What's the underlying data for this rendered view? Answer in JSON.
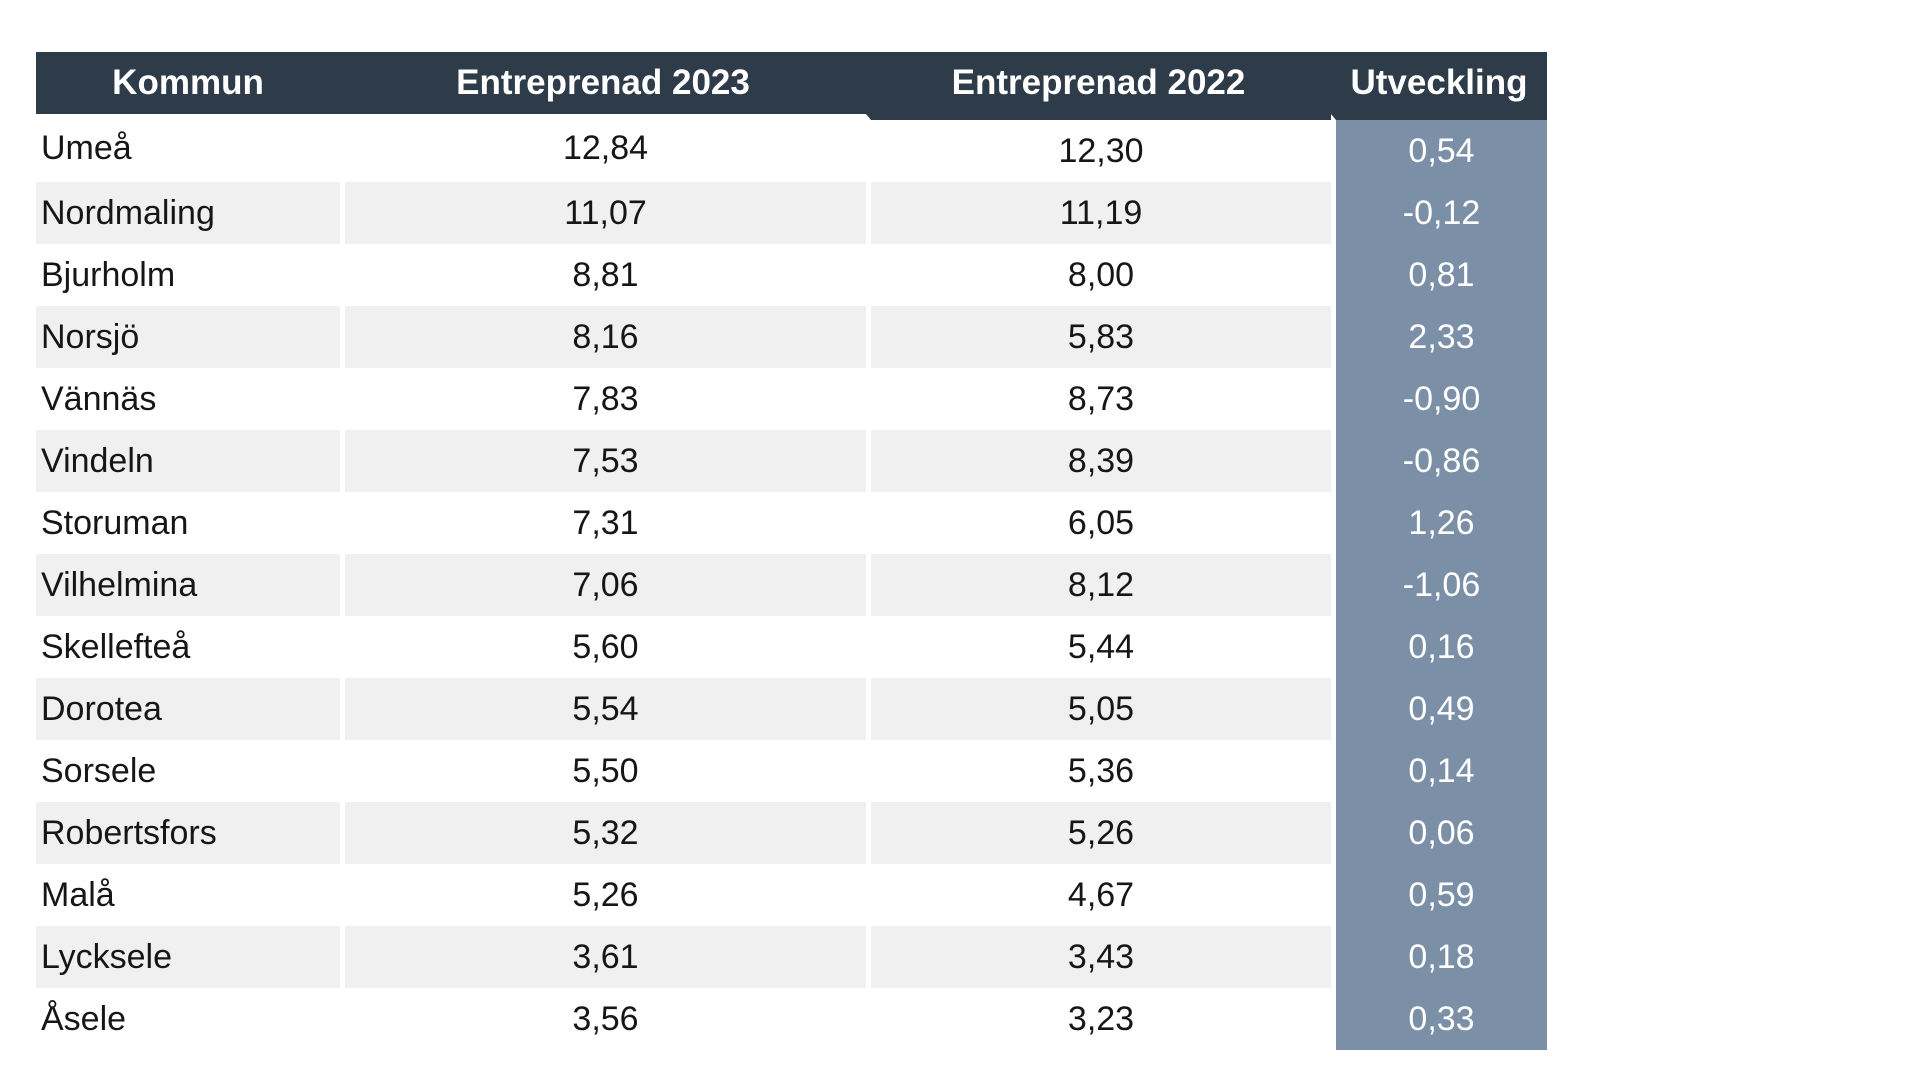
{
  "table": {
    "columns": [
      {
        "label": "Kommun"
      },
      {
        "label": "Entreprenad 2023"
      },
      {
        "label": "Entreprenad 2022"
      },
      {
        "label": "Utveckling"
      }
    ],
    "rows": [
      {
        "kommun": "Umeå",
        "e2023": "12,84",
        "e2022": "12,30",
        "utveckling": "0,54"
      },
      {
        "kommun": "Nordmaling",
        "e2023": "11,07",
        "e2022": "11,19",
        "utveckling": "-0,12"
      },
      {
        "kommun": "Bjurholm",
        "e2023": "8,81",
        "e2022": "8,00",
        "utveckling": "0,81"
      },
      {
        "kommun": "Norsjö",
        "e2023": "8,16",
        "e2022": "5,83",
        "utveckling": "2,33"
      },
      {
        "kommun": "Vännäs",
        "e2023": "7,83",
        "e2022": "8,73",
        "utveckling": "-0,90"
      },
      {
        "kommun": "Vindeln",
        "e2023": "7,53",
        "e2022": "8,39",
        "utveckling": "-0,86"
      },
      {
        "kommun": "Storuman",
        "e2023": "7,31",
        "e2022": "6,05",
        "utveckling": "1,26"
      },
      {
        "kommun": "Vilhelmina",
        "e2023": "7,06",
        "e2022": "8,12",
        "utveckling": "-1,06"
      },
      {
        "kommun": "Skellefteå",
        "e2023": "5,60",
        "e2022": "5,44",
        "utveckling": "0,16"
      },
      {
        "kommun": "Dorotea",
        "e2023": "5,54",
        "e2022": "5,05",
        "utveckling": "0,49"
      },
      {
        "kommun": "Sorsele",
        "e2023": "5,50",
        "e2022": "5,36",
        "utveckling": "0,14"
      },
      {
        "kommun": "Robertsfors",
        "e2023": "5,32",
        "e2022": "5,26",
        "utveckling": "0,06"
      },
      {
        "kommun": "Malå",
        "e2023": "5,26",
        "e2022": "4,67",
        "utveckling": "0,59"
      },
      {
        "kommun": "Lycksele",
        "e2023": "3,61",
        "e2022": "3,43",
        "utveckling": "0,18"
      },
      {
        "kommun": "Åsele",
        "e2023": "3,56",
        "e2022": "3,23",
        "utveckling": "0,33"
      }
    ]
  },
  "colors": {
    "header_bg": "#2e3b49",
    "header_text": "#ffffff",
    "stripe_bg": "#f0f0f0",
    "utveckling_bg": "#7b90a7",
    "utveckling_text": "#ffffff",
    "body_text": "#161616"
  }
}
